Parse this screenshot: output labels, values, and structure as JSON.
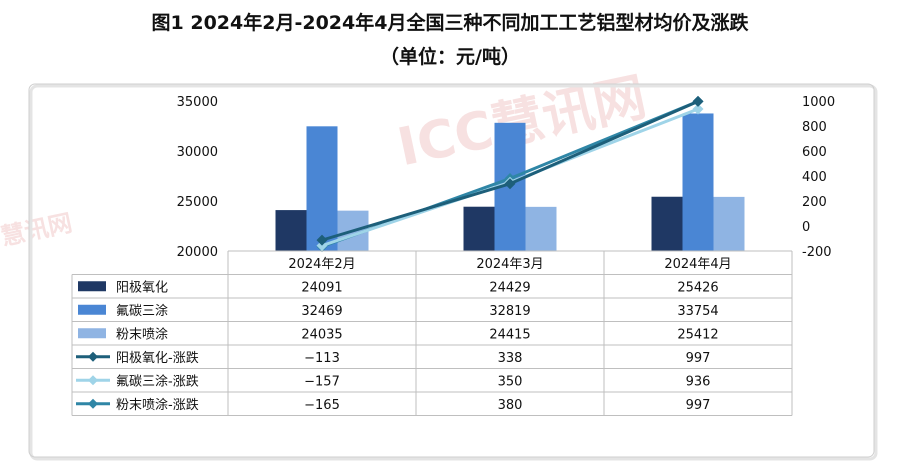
{
  "title": "图1  2024年2月-2024年4月全国三种不同加工工艺铝型材均价及涨跌",
  "subtitle": "（单位：元/吨）",
  "watermark": {
    "main": "ICC慧讯网",
    "secondary": "慧讯网"
  },
  "chart_data": {
    "type": "bar",
    "categories": [
      "2024年2月",
      "2024年3月",
      "2024年4月"
    ],
    "series": [
      {
        "name": "阳极氧化",
        "type": "bar",
        "axis": "left",
        "color": "#1f3864",
        "values": [
          24091,
          24429,
          25426
        ]
      },
      {
        "name": "氟碳三涂",
        "type": "bar",
        "axis": "left",
        "color": "#4a86d4",
        "values": [
          32469,
          32819,
          33754
        ]
      },
      {
        "name": "粉末喷涂",
        "type": "bar",
        "axis": "left",
        "color": "#8fb4e3",
        "values": [
          24035,
          24415,
          25412
        ]
      },
      {
        "name": "阳极氧化-涨跌",
        "type": "line",
        "axis": "right",
        "color": "#1d5f7a",
        "values": [
          -113,
          338,
          997
        ]
      },
      {
        "name": "氟碳三涂-涨跌",
        "type": "line",
        "axis": "right",
        "color": "#9fd4e8",
        "values": [
          -157,
          350,
          936
        ]
      },
      {
        "name": "粉末喷涂-涨跌",
        "type": "line",
        "axis": "right",
        "color": "#2f86a6",
        "values": [
          -165,
          380,
          997
        ]
      }
    ],
    "y_left": {
      "min": 20000,
      "max": 35000,
      "ticks": [
        20000,
        25000,
        30000,
        35000
      ]
    },
    "y_right": {
      "min": -200,
      "max": 1000,
      "ticks": [
        -200,
        0,
        200,
        400,
        600,
        800,
        1000
      ]
    },
    "data_table": true,
    "grid": false
  }
}
